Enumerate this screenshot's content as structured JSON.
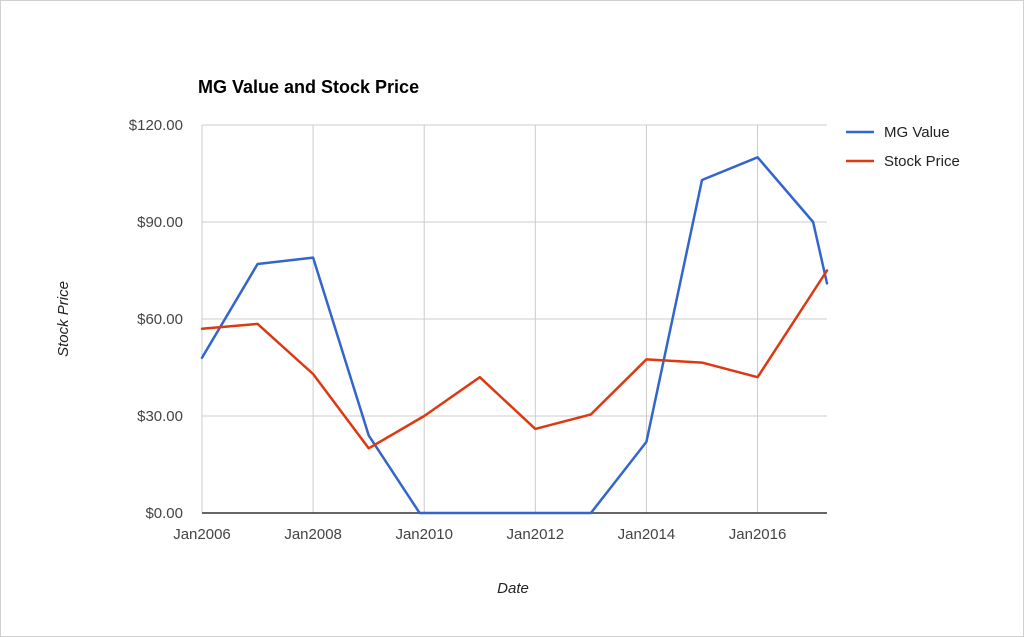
{
  "chart_data": {
    "type": "line",
    "title": "MG Value and Stock Price",
    "xlabel": "Date",
    "ylabel": "Stock Price",
    "x_ticks": [
      "Jan2006",
      "Jan2008",
      "Jan2010",
      "Jan2012",
      "Jan2014",
      "Jan2016"
    ],
    "y_ticks": [
      "$0.00",
      "$30.00",
      "$60.00",
      "$90.00",
      "$120.00"
    ],
    "ylim": [
      0,
      120
    ],
    "xlim": [
      "2006-01",
      "2017-04"
    ],
    "grid": true,
    "legend_position": "right",
    "series": [
      {
        "name": "MG Value",
        "color": "#3366cc",
        "points": [
          {
            "x": "2006-01",
            "y": 48
          },
          {
            "x": "2007-01",
            "y": 77
          },
          {
            "x": "2008-01",
            "y": 79
          },
          {
            "x": "2009-01",
            "y": 24
          },
          {
            "x": "2009-12",
            "y": 0
          },
          {
            "x": "2011-01",
            "y": 0
          },
          {
            "x": "2012-01",
            "y": 0
          },
          {
            "x": "2013-01",
            "y": 0
          },
          {
            "x": "2014-01",
            "y": 22
          },
          {
            "x": "2015-01",
            "y": 103
          },
          {
            "x": "2016-01",
            "y": 110
          },
          {
            "x": "2017-01",
            "y": 90
          },
          {
            "x": "2017-04",
            "y": 71
          }
        ]
      },
      {
        "name": "Stock Price",
        "color": "#dc3912",
        "points": [
          {
            "x": "2006-01",
            "y": 57
          },
          {
            "x": "2007-01",
            "y": 58.5
          },
          {
            "x": "2008-01",
            "y": 43
          },
          {
            "x": "2009-01",
            "y": 20
          },
          {
            "x": "2010-01",
            "y": 30
          },
          {
            "x": "2011-01",
            "y": 42
          },
          {
            "x": "2012-01",
            "y": 26
          },
          {
            "x": "2013-01",
            "y": 30.5
          },
          {
            "x": "2014-01",
            "y": 47.5
          },
          {
            "x": "2015-01",
            "y": 46.5
          },
          {
            "x": "2016-01",
            "y": 42
          },
          {
            "x": "2017-04",
            "y": 75
          }
        ]
      }
    ]
  }
}
